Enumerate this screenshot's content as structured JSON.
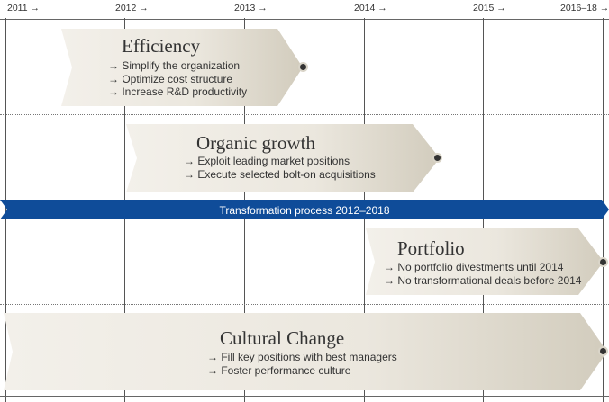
{
  "timeline": {
    "years": [
      "2011 →",
      "2012 →",
      "2013 →",
      "2014 →",
      "2015 →",
      "2016–18 →"
    ]
  },
  "phases": {
    "efficiency": {
      "title": "Efficiency",
      "bullets": [
        "Simplify the organization",
        "Optimize cost structure",
        "Increase R&D productivity"
      ]
    },
    "organic_growth": {
      "title": "Organic growth",
      "bullets": [
        "Exploit leading market positions",
        "Execute selected bolt-on acquisitions"
      ]
    },
    "portfolio": {
      "title": "Portfolio",
      "bullets": [
        "No portfolio divestments until 2014",
        "No transformational deals before 2014"
      ]
    },
    "cultural_change": {
      "title": "Cultural Change",
      "bullets": [
        "Fill key positions with best managers",
        "Foster performance culture"
      ]
    }
  },
  "transformation_band": {
    "label": "Transformation process 2012–2018"
  },
  "colors": {
    "band_blue": "#0f4c99",
    "chevron_light": "#f2efe8",
    "chevron_dark": "#d2ccbd"
  }
}
